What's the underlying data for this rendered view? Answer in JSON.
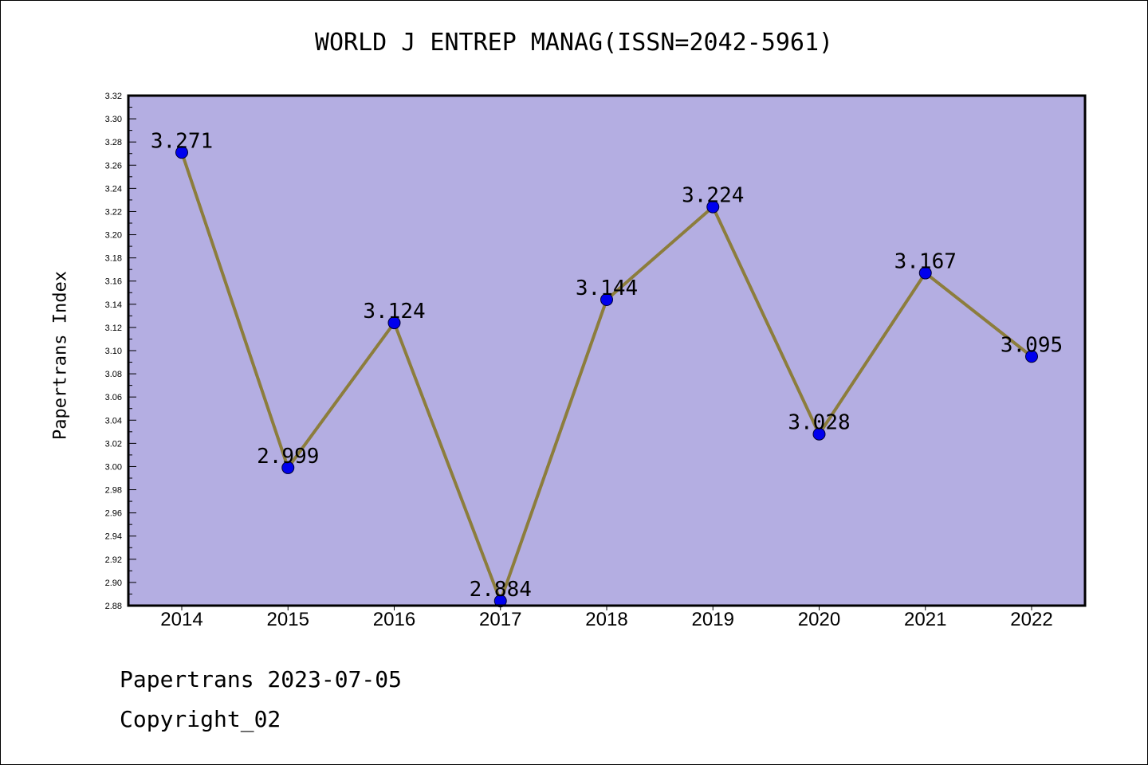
{
  "chart_data": {
    "type": "line",
    "title": "WORLD J ENTREP MANAG(ISSN=2042-5961)",
    "xlabel": "",
    "ylabel": "Papertrans Index",
    "categories": [
      "2014",
      "2015",
      "2016",
      "2017",
      "2018",
      "2019",
      "2020",
      "2021",
      "2022"
    ],
    "series": [
      {
        "values": [
          3.271,
          2.999,
          3.124,
          2.884,
          3.144,
          3.224,
          3.028,
          3.167,
          3.095
        ]
      }
    ],
    "data_labels": [
      "3.271",
      "2.999",
      "3.124",
      "2.884",
      "3.144",
      "3.224",
      "3.028",
      "3.167",
      "3.095"
    ],
    "ylim": [
      2.88,
      3.32
    ],
    "yticks": [
      "2.88",
      "2.90",
      "2.92",
      "2.94",
      "2.96",
      "2.98",
      "3.00",
      "3.02",
      "3.04",
      "3.06",
      "3.08",
      "3.10",
      "3.12",
      "3.14",
      "3.16",
      "3.18",
      "3.20",
      "3.22",
      "3.24",
      "3.26",
      "3.28",
      "3.30",
      "3.32"
    ],
    "grid": false,
    "colors": {
      "plot_background": "#b4aee2",
      "line": "#8c7d3c",
      "marker": "#0000ee"
    }
  },
  "footer": {
    "date_text": "Papertrans 2023-07-05",
    "copyright_text": "Copyright_02"
  }
}
